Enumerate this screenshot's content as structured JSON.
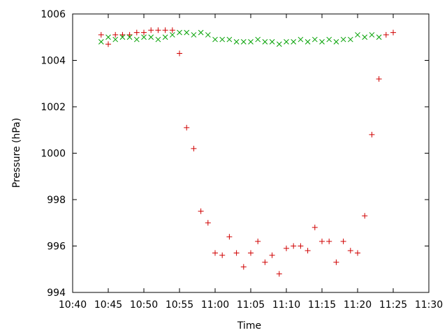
{
  "chart_data": {
    "type": "scatter",
    "xlabel": "Time",
    "ylabel": "Pressure (hPa)",
    "x_ticks": [
      "10:40",
      "10:45",
      "10:50",
      "10:55",
      "11:00",
      "11:05",
      "11:10",
      "11:15",
      "11:20",
      "11:25",
      "11:30"
    ],
    "y_ticks": [
      994,
      996,
      998,
      1000,
      1002,
      1004,
      1006
    ],
    "xlim": [
      "10:40",
      "11:30"
    ],
    "ylim": [
      994,
      1006
    ],
    "grid": false,
    "legend": "none",
    "series": [
      {
        "marker": "plus",
        "color": "#d00000",
        "points": [
          [
            "10:44",
            1005.1
          ],
          [
            "10:45",
            1004.7
          ],
          [
            "10:46",
            1005.1
          ],
          [
            "10:47",
            1005.1
          ],
          [
            "10:48",
            1005.1
          ],
          [
            "10:49",
            1005.2
          ],
          [
            "10:50",
            1005.2
          ],
          [
            "10:51",
            1005.3
          ],
          [
            "10:52",
            1005.3
          ],
          [
            "10:53",
            1005.3
          ],
          [
            "10:54",
            1005.3
          ],
          [
            "10:55",
            1004.3
          ],
          [
            "10:56",
            1001.1
          ],
          [
            "10:57",
            1000.2
          ],
          [
            "10:58",
            997.5
          ],
          [
            "10:59",
            997.0
          ],
          [
            "11:00",
            995.7
          ],
          [
            "11:01",
            995.6
          ],
          [
            "11:02",
            996.4
          ],
          [
            "11:03",
            995.7
          ],
          [
            "11:04",
            995.1
          ],
          [
            "11:05",
            995.7
          ],
          [
            "11:06",
            996.2
          ],
          [
            "11:07",
            995.3
          ],
          [
            "11:08",
            995.6
          ],
          [
            "11:09",
            994.8
          ],
          [
            "11:10",
            995.9
          ],
          [
            "11:11",
            996.0
          ],
          [
            "11:12",
            996.0
          ],
          [
            "11:13",
            995.8
          ],
          [
            "11:14",
            996.8
          ],
          [
            "11:15",
            996.2
          ],
          [
            "11:16",
            996.2
          ],
          [
            "11:17",
            995.3
          ],
          [
            "11:18",
            996.2
          ],
          [
            "11:19",
            995.8
          ],
          [
            "11:20",
            995.7
          ],
          [
            "11:21",
            997.3
          ],
          [
            "11:22",
            1000.8
          ],
          [
            "11:23",
            1003.2
          ],
          [
            "11:24",
            1005.1
          ],
          [
            "11:25",
            1005.2
          ]
        ]
      },
      {
        "marker": "cross",
        "color": "#00a000",
        "points": [
          [
            "10:44",
            1004.8
          ],
          [
            "10:45",
            1005.0
          ],
          [
            "10:46",
            1004.9
          ],
          [
            "10:47",
            1005.0
          ],
          [
            "10:48",
            1005.0
          ],
          [
            "10:49",
            1004.9
          ],
          [
            "10:50",
            1005.0
          ],
          [
            "10:51",
            1005.0
          ],
          [
            "10:52",
            1004.9
          ],
          [
            "10:53",
            1005.0
          ],
          [
            "10:54",
            1005.1
          ],
          [
            "10:55",
            1005.2
          ],
          [
            "10:56",
            1005.2
          ],
          [
            "10:57",
            1005.1
          ],
          [
            "10:58",
            1005.2
          ],
          [
            "10:59",
            1005.1
          ],
          [
            "11:00",
            1004.9
          ],
          [
            "11:01",
            1004.9
          ],
          [
            "11:02",
            1004.9
          ],
          [
            "11:03",
            1004.8
          ],
          [
            "11:04",
            1004.8
          ],
          [
            "11:05",
            1004.8
          ],
          [
            "11:06",
            1004.9
          ],
          [
            "11:07",
            1004.8
          ],
          [
            "11:08",
            1004.8
          ],
          [
            "11:09",
            1004.7
          ],
          [
            "11:10",
            1004.8
          ],
          [
            "11:11",
            1004.8
          ],
          [
            "11:12",
            1004.9
          ],
          [
            "11:13",
            1004.8
          ],
          [
            "11:14",
            1004.9
          ],
          [
            "11:15",
            1004.8
          ],
          [
            "11:16",
            1004.9
          ],
          [
            "11:17",
            1004.8
          ],
          [
            "11:18",
            1004.9
          ],
          [
            "11:19",
            1004.9
          ],
          [
            "11:20",
            1005.1
          ],
          [
            "11:21",
            1005.0
          ],
          [
            "11:22",
            1005.1
          ],
          [
            "11:23",
            1005.0
          ]
        ]
      }
    ]
  }
}
